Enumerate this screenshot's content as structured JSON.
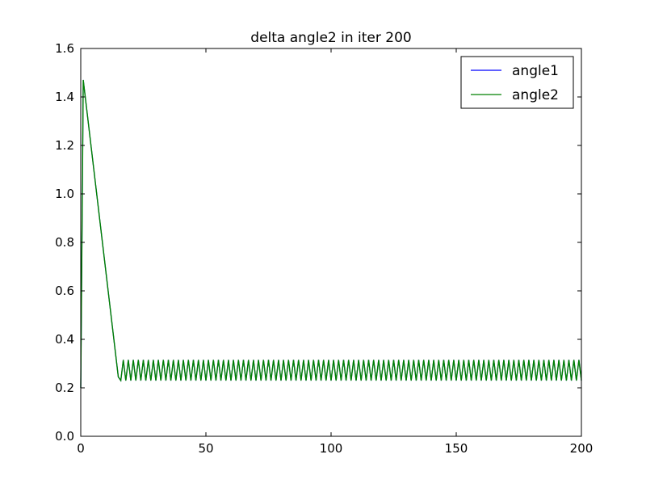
{
  "chart_data": {
    "type": "line",
    "title": "delta angle2 in iter 200",
    "xlabel": "",
    "ylabel": "",
    "xlim": [
      0,
      200
    ],
    "ylim": [
      0.0,
      1.6
    ],
    "xticks": [
      "0",
      "50",
      "100",
      "150",
      "200"
    ],
    "yticks": [
      "0.0",
      "0.2",
      "0.4",
      "0.6",
      "0.8",
      "1.0",
      "1.2",
      "1.4",
      "1.6"
    ],
    "grid": false,
    "legend_position": "top-right",
    "series": [
      {
        "name": "angle1",
        "color": "#0000ff",
        "head": [
          [
            0,
            0.2
          ],
          [
            1,
            1.47
          ],
          [
            15,
            0.245
          ],
          [
            16,
            0.23
          ]
        ],
        "oscillation": {
          "start": 16,
          "end": 200,
          "period": 2,
          "low": 0.23,
          "high": 0.315
        }
      },
      {
        "name": "angle2",
        "color": "#008000",
        "head": [
          [
            0,
            0.2
          ],
          [
            1,
            1.47
          ],
          [
            15,
            0.245
          ],
          [
            16,
            0.23
          ]
        ],
        "oscillation": {
          "start": 16,
          "end": 200,
          "period": 2,
          "low": 0.23,
          "high": 0.315
        }
      }
    ]
  }
}
